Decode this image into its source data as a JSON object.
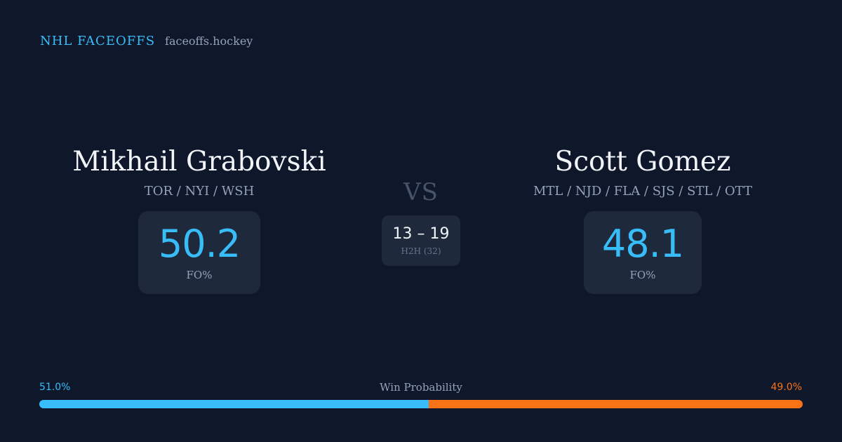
{
  "brand": {
    "name": "NHL FACEOFFS",
    "domain": "faceoffs.hockey"
  },
  "player_left": {
    "name": "Mikhail Grabovski",
    "teams": "TOR / NYI / WSH",
    "fo_value": "50.2",
    "fo_label": "FO%"
  },
  "player_right": {
    "name": "Scott Gomez",
    "teams": "MTL / NJD / FLA / SJS / STL / OTT",
    "fo_value": "48.1",
    "fo_label": "FO%"
  },
  "versus": {
    "label": "VS",
    "score": "13 – 19",
    "h2h_label": "H2H (32)"
  },
  "win_probability": {
    "title": "Win Probability",
    "left_label": "51.0%",
    "right_label": "49.0%",
    "left_fraction": 0.51,
    "left_color": "#38bdf8",
    "right_color": "#f97316"
  }
}
